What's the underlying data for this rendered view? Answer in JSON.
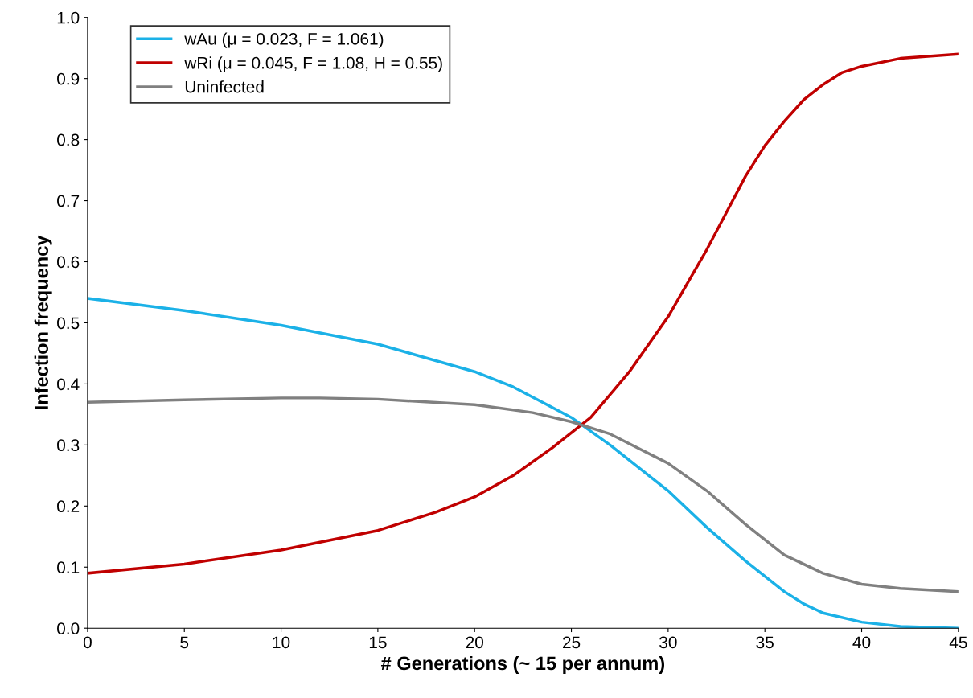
{
  "chart_data": {
    "type": "line",
    "xlabel": "# Generations (~ 15 per annum)",
    "ylabel": "Infection frequency",
    "xlim": [
      0,
      45
    ],
    "xticks": [
      0,
      5,
      10,
      15,
      20,
      25,
      30,
      35,
      40,
      45
    ],
    "ylim": [
      0,
      1
    ],
    "yticks": [
      {
        "value": 0,
        "label": "0.0"
      },
      0.1,
      0.2,
      0.3,
      0.4,
      0.5,
      0.6,
      0.7,
      0.8,
      0.9,
      {
        "value": 1,
        "label": "1.0"
      }
    ],
    "grid": false,
    "legend": "top left",
    "marker": "none",
    "line_style": "solid",
    "series": [
      {
        "name": "wAu (μ = 0.023, F = 1.061)",
        "color": "#1bb1e7",
        "x": [
          0,
          5,
          10,
          15,
          20,
          22,
          25,
          27,
          30,
          32,
          34,
          35,
          36,
          37,
          38,
          40,
          42,
          45
        ],
        "values": [
          0.54,
          0.52,
          0.496,
          0.465,
          0.42,
          0.395,
          0.345,
          0.3,
          0.225,
          0.165,
          0.11,
          0.085,
          0.06,
          0.04,
          0.025,
          0.01,
          0.003,
          0.0
        ]
      },
      {
        "name": "wRi (μ = 0.045, F = 1.08, H = 0.55)",
        "color": "#c00000",
        "x": [
          0,
          5,
          10,
          15,
          18,
          20,
          22,
          24,
          25,
          26,
          28,
          30,
          32,
          33,
          34,
          35,
          36,
          37,
          38,
          39,
          40,
          42,
          45
        ],
        "values": [
          0.09,
          0.105,
          0.128,
          0.16,
          0.19,
          0.215,
          0.25,
          0.295,
          0.32,
          0.345,
          0.42,
          0.51,
          0.62,
          0.68,
          0.74,
          0.79,
          0.83,
          0.865,
          0.89,
          0.91,
          0.92,
          0.933,
          0.94
        ]
      },
      {
        "name": "Uninfected",
        "color": "#808080",
        "x": [
          0,
          5,
          10,
          12,
          15,
          20,
          23,
          25,
          27,
          30,
          32,
          34,
          35,
          36,
          38,
          40,
          42,
          45
        ],
        "values": [
          0.37,
          0.374,
          0.377,
          0.377,
          0.375,
          0.366,
          0.353,
          0.338,
          0.318,
          0.27,
          0.225,
          0.17,
          0.145,
          0.12,
          0.09,
          0.072,
          0.065,
          0.06
        ]
      }
    ]
  }
}
